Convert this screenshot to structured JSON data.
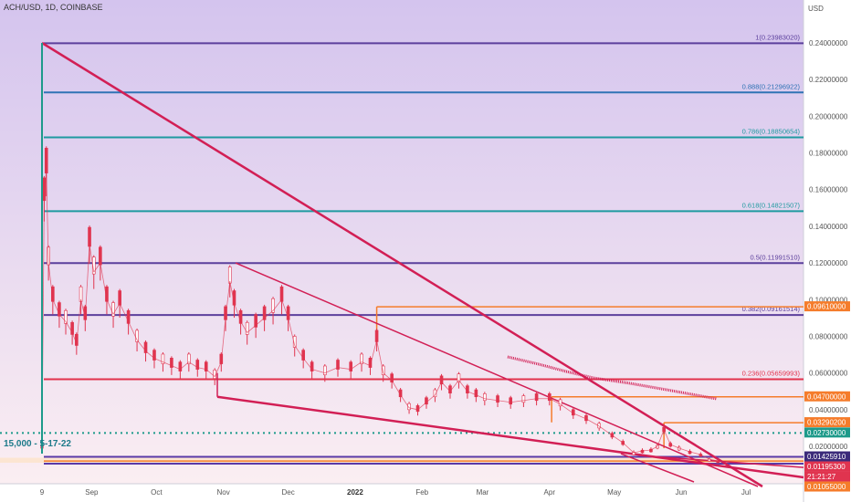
{
  "header": {
    "title": "ACH/USD, 1D, COINBASE"
  },
  "axis": {
    "currency": "USD"
  },
  "colors": {
    "bg_top": "#d4c4ee",
    "bg_bottom": "#fbeef2",
    "candle": "#e0344f",
    "trend": "#d21f55",
    "fib_top": "#5b3f9c",
    "fib_blue": "#2f73b5",
    "fib_teal": "#1f9aa0",
    "fib_red": "#e2324c",
    "fib_bottom": "#5a3aa8",
    "orange": "#f57c2b",
    "dotted": "#1d9a8a"
  },
  "chart_data": {
    "type": "line",
    "title": "ACH/USD, 1D, COINBASE",
    "ylabel": "USD",
    "ylim": [
      0.0105,
      0.246
    ],
    "x_ticks": [
      {
        "label": "9",
        "date": "2021-08-09"
      },
      {
        "label": "Sep",
        "date": "2021-09-01"
      },
      {
        "label": "Oct",
        "date": "2021-10-01"
      },
      {
        "label": "Nov",
        "date": "2021-11-01"
      },
      {
        "label": "Dec",
        "date": "2021-12-01"
      },
      {
        "label": "2022",
        "date": "2022-01-01"
      },
      {
        "label": "Feb",
        "date": "2022-02-01"
      },
      {
        "label": "Mar",
        "date": "2022-03-01"
      },
      {
        "label": "Apr",
        "date": "2022-04-01"
      },
      {
        "label": "May",
        "date": "2022-05-01"
      },
      {
        "label": "Jun",
        "date": "2022-06-01"
      },
      {
        "label": "Jul",
        "date": "2022-07-01"
      }
    ],
    "y_ticks": [
      "0.24000000",
      "0.22000000",
      "0.20000000",
      "0.18000000",
      "0.16000000",
      "0.14000000",
      "0.12000000",
      "0.10000000",
      "0.08000000",
      "0.06000000",
      "0.04000000",
      "0.02000000"
    ],
    "fib_levels": [
      {
        "label": "1(0.23983020)",
        "value": 0.2398302,
        "color": "fib_top"
      },
      {
        "label": "0.888(0.21296922)",
        "value": 0.21296922,
        "color": "fib_blue"
      },
      {
        "label": "0.786(0.18850654)",
        "value": 0.18850654,
        "color": "fib_teal"
      },
      {
        "label": "0.618(0.14821507)",
        "value": 0.14821507,
        "color": "fib_teal"
      },
      {
        "label": "0.5(0.11991510)",
        "value": 0.1199151,
        "color": "fib_top"
      },
      {
        "label": "0.382(0.09161514)",
        "value": 0.09161514,
        "color": "fib_top"
      },
      {
        "label": "0.236(0.05659993)",
        "value": 0.05659993,
        "color": "fib_red"
      },
      {
        "label": "",
        "value": 0.0142591,
        "color": "fib_bottom"
      },
      {
        "label": "",
        "value": 0.01055,
        "color": "fib_bottom"
      }
    ],
    "price_tags": [
      {
        "label": "0.09610000",
        "value": 0.0961,
        "bg": "#f57c2b"
      },
      {
        "label": "0.04700000",
        "value": 0.047,
        "bg": "#f57c2b"
      },
      {
        "label": "0.03290200",
        "value": 0.032902,
        "bg": "#f57c2b"
      },
      {
        "label": "0.02730000",
        "value": 0.0273,
        "bg": "#1d9a8a"
      },
      {
        "label": "0.01425910",
        "value": 0.0142591,
        "bg": "#3b2a7a"
      },
      {
        "label": "0.01195300",
        "value": 0.011953,
        "bg": "#e0344f"
      },
      {
        "label": "21:21:27",
        "value": 0.0105,
        "bg": "#e0344f"
      },
      {
        "label": "0.01055000",
        "value": 0.01055,
        "bg": "#f57c2b"
      }
    ],
    "hidden_tick": "0.02000000",
    "annotation": "15,000 - 5-17-22",
    "series": [
      {
        "values": [
          [
            "2021-08-09",
            0.02
          ],
          [
            "2021-08-10",
            0.155
          ],
          [
            "2021-08-11",
            0.17
          ],
          [
            "2021-08-12",
            0.12
          ],
          [
            "2021-08-14",
            0.1
          ],
          [
            "2021-08-17",
            0.092
          ],
          [
            "2021-08-20",
            0.088
          ],
          [
            "2021-08-23",
            0.082
          ],
          [
            "2021-08-25",
            0.076
          ],
          [
            "2021-08-27",
            0.1
          ],
          [
            "2021-08-29",
            0.09
          ],
          [
            "2021-08-31",
            0.13
          ],
          [
            "2021-09-02",
            0.115
          ],
          [
            "2021-09-05",
            0.12
          ],
          [
            "2021-09-08",
            0.1
          ],
          [
            "2021-09-11",
            0.092
          ],
          [
            "2021-09-14",
            0.098
          ],
          [
            "2021-09-18",
            0.088
          ],
          [
            "2021-09-22",
            0.078
          ],
          [
            "2021-09-26",
            0.072
          ],
          [
            "2021-09-30",
            0.068
          ],
          [
            "2021-10-04",
            0.066
          ],
          [
            "2021-10-08",
            0.064
          ],
          [
            "2021-10-12",
            0.062
          ],
          [
            "2021-10-16",
            0.066
          ],
          [
            "2021-10-20",
            0.063
          ],
          [
            "2021-10-24",
            0.062
          ],
          [
            "2021-10-28",
            0.058
          ],
          [
            "2021-10-31",
            0.066
          ],
          [
            "2021-11-02",
            0.09
          ],
          [
            "2021-11-04",
            0.11
          ],
          [
            "2021-11-06",
            0.098
          ],
          [
            "2021-11-09",
            0.088
          ],
          [
            "2021-11-12",
            0.082
          ],
          [
            "2021-11-16",
            0.086
          ],
          [
            "2021-11-20",
            0.09
          ],
          [
            "2021-11-24",
            0.094
          ],
          [
            "2021-11-28",
            0.1
          ],
          [
            "2021-12-01",
            0.09
          ],
          [
            "2021-12-04",
            0.075
          ],
          [
            "2021-12-08",
            0.068
          ],
          [
            "2021-12-12",
            0.062
          ],
          [
            "2021-12-18",
            0.06
          ],
          [
            "2021-12-24",
            0.063
          ],
          [
            "2021-12-30",
            0.062
          ],
          [
            "2022-01-04",
            0.066
          ],
          [
            "2022-01-08",
            0.064
          ],
          [
            "2022-01-11",
            0.078
          ],
          [
            "2022-01-14",
            0.06
          ],
          [
            "2022-01-18",
            0.056
          ],
          [
            "2022-01-22",
            0.048
          ],
          [
            "2022-01-26",
            0.041
          ],
          [
            "2022-01-30",
            0.04
          ],
          [
            "2022-02-03",
            0.044
          ],
          [
            "2022-02-07",
            0.048
          ],
          [
            "2022-02-10",
            0.055
          ],
          [
            "2022-02-14",
            0.05
          ],
          [
            "2022-02-18",
            0.056
          ],
          [
            "2022-02-22",
            0.05
          ],
          [
            "2022-02-26",
            0.048
          ],
          [
            "2022-03-02",
            0.046
          ],
          [
            "2022-03-08",
            0.045
          ],
          [
            "2022-03-14",
            0.044
          ],
          [
            "2022-03-20",
            0.045
          ],
          [
            "2022-03-26",
            0.046
          ],
          [
            "2022-04-01",
            0.046
          ],
          [
            "2022-04-06",
            0.043
          ],
          [
            "2022-04-12",
            0.038
          ],
          [
            "2022-04-18",
            0.035
          ],
          [
            "2022-04-24",
            0.031
          ],
          [
            "2022-04-30",
            0.026
          ],
          [
            "2022-05-05",
            0.022
          ],
          [
            "2022-05-10",
            0.0165
          ],
          [
            "2022-05-14",
            0.0175
          ],
          [
            "2022-05-18",
            0.018
          ],
          [
            "2022-05-21",
            0.02
          ],
          [
            "2022-05-24",
            0.029
          ],
          [
            "2022-05-27",
            0.021
          ],
          [
            "2022-05-31",
            0.019
          ],
          [
            "2022-06-05",
            0.017
          ],
          [
            "2022-06-10",
            0.0155
          ],
          [
            "2022-06-14",
            0.013
          ],
          [
            "2022-06-18",
            0.012
          ]
        ]
      }
    ]
  }
}
